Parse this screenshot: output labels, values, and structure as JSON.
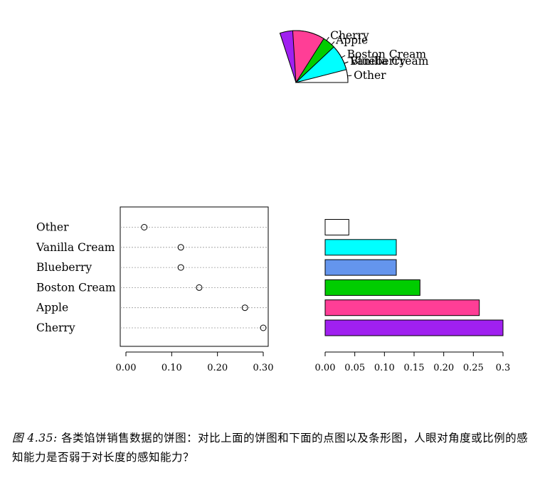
{
  "chart_data": [
    {
      "type": "pie",
      "title": "",
      "categories": [
        "Cherry",
        "Apple",
        "Boston Cream",
        "Blueberry",
        "Vanilla Cream",
        "Other"
      ],
      "values": [
        0.3,
        0.26,
        0.16,
        0.12,
        0.12,
        0.04
      ],
      "colors": [
        "#a020f0",
        "#ff3e96",
        "#00cd00",
        "#6495ed",
        "#00ffff",
        "#ffffff"
      ]
    },
    {
      "type": "scatter",
      "subtype": "dot-chart",
      "categories": [
        "Cherry",
        "Apple",
        "Boston Cream",
        "Blueberry",
        "Vanilla Cream",
        "Other"
      ],
      "values": [
        0.3,
        0.26,
        0.16,
        0.12,
        0.12,
        0.04
      ],
      "xlabel": "",
      "ylabel": "",
      "xlim": [
        0,
        0.3
      ],
      "xticks": [
        "0.00",
        "0.10",
        "0.20",
        "0.30"
      ],
      "grid": "dotted-row-lines"
    },
    {
      "type": "bar",
      "orientation": "horizontal",
      "categories": [
        "Cherry",
        "Apple",
        "Boston Cream",
        "Blueberry",
        "Vanilla Cream",
        "Other"
      ],
      "values": [
        0.3,
        0.26,
        0.16,
        0.12,
        0.12,
        0.04
      ],
      "colors": [
        "#a020f0",
        "#ff3e96",
        "#00cd00",
        "#6495ed",
        "#00ffff",
        "#ffffff"
      ],
      "xlabel": "",
      "ylabel": "",
      "xlim": [
        0,
        0.3
      ],
      "xticks": [
        "0.00",
        "0.05",
        "0.10",
        "0.15",
        "0.20",
        "0.25",
        "0.3"
      ]
    }
  ],
  "caption": {
    "number": "图 4.35:",
    "text": "各类馅饼销售数据的饼图：对比上面的饼图和下面的点图以及条形图，人眼对角度或比例的感知能力是否弱于对长度的感知能力？"
  }
}
